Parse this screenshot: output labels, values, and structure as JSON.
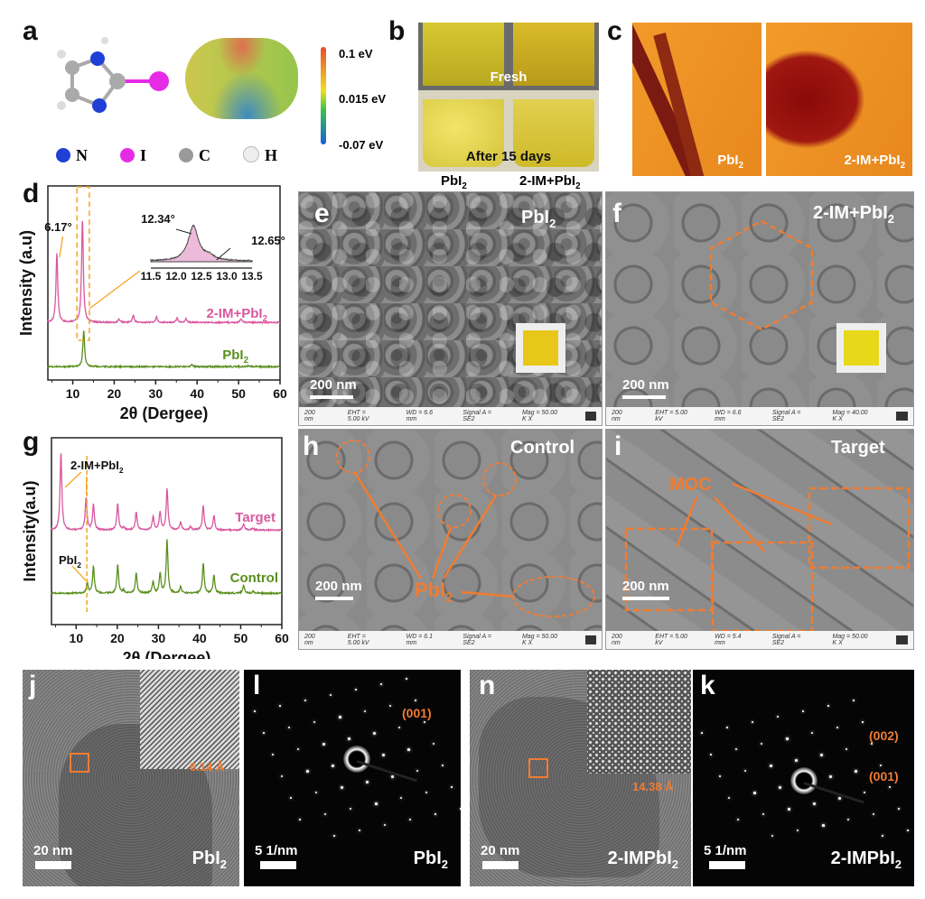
{
  "panels": {
    "a": {
      "label": "a",
      "colorbar": {
        "max": "0.1 eV",
        "mid": "0.015 eV",
        "min": "-0.07 eV"
      },
      "legend": [
        {
          "symbol": "N",
          "color": "#1f3fd6"
        },
        {
          "symbol": "I",
          "color": "#e62be6"
        },
        {
          "symbol": "C",
          "color": "#9a9a9a"
        },
        {
          "symbol": "H",
          "color": "#eeeeee"
        }
      ]
    },
    "b": {
      "label": "b",
      "fresh": "Fresh",
      "after": "After 15 days",
      "left": "PbI",
      "right": "2-IM+PbI",
      "sub": "2"
    },
    "c": {
      "label": "c",
      "left": "PbI",
      "right": "2-IM+PbI",
      "sub": "2"
    },
    "e": {
      "label": "e",
      "title": "PbI",
      "sub": "2",
      "scale": "200 nm"
    },
    "f": {
      "label": "f",
      "title": "2-IM+PbI",
      "sub": "2",
      "scale": "200 nm"
    },
    "h": {
      "label": "h",
      "title": "Control",
      "scale": "200 nm",
      "annot": "PbI",
      "sub": "2"
    },
    "i": {
      "label": "i",
      "title": "Target",
      "scale": "200 nm",
      "annot": "MOC"
    },
    "j": {
      "label": "j",
      "dspacing": "6.14 Å",
      "scale": "20 nm",
      "name": "PbI",
      "sub": "2"
    },
    "l": {
      "label": "l",
      "plane": "(001)",
      "scale": "5 1/nm",
      "name": "PbI",
      "sub": "2"
    },
    "n": {
      "label": "n",
      "dspacing": "14.38 Å",
      "scale": "20 nm",
      "name": "2-IMPbI",
      "sub": "2"
    },
    "k": {
      "label": "k",
      "plane1": "(002)",
      "plane2": "(001)",
      "scale": "5 1/nm",
      "name": "2-IMPbI",
      "sub": "2"
    }
  },
  "sem_footers": {
    "e": {
      "scale": "200 nm",
      "eht": "EHT = 5.00 kV",
      "wd": "WD = 6.6 mm",
      "signal": "Signal A = SE2",
      "mag": "Mag = 50.00 K X"
    },
    "f": {
      "scale": "200 nm",
      "eht": "EHT = 5.00 kV",
      "wd": "WD = 6.6 mm",
      "signal": "Signal A = SE2",
      "mag": "Mag = 40.00 K X"
    },
    "h": {
      "scale": "200 nm",
      "eht": "EHT = 5.00 kV",
      "wd": "WD = 6.1 mm",
      "signal": "Signal A = SE2",
      "mag": "Mag = 50.00 K X"
    },
    "i": {
      "scale": "200 nm",
      "eht": "EHT = 5.00 kV",
      "wd": "WD = 5.4 mm",
      "signal": "Signal A = SE2",
      "mag": "Mag = 50.00 K X"
    }
  },
  "chart_data": [
    {
      "id": "d",
      "label": "d",
      "type": "line",
      "xlabel": "2θ (Dergee)",
      "ylabel": "Intensity (a.u)",
      "xlim": [
        4,
        60
      ],
      "xticks": [
        10,
        20,
        30,
        40,
        50,
        60
      ],
      "series": [
        {
          "name": "2-IM+PbI2",
          "label": "2-IM+PbI",
          "sub": "2",
          "color": "#d9589f",
          "peaks": [
            [
              6.17,
              77
            ],
            [
              12.34,
              115
            ],
            [
              21.2,
              4
            ],
            [
              24.6,
              8
            ],
            [
              30.2,
              6
            ],
            [
              35.2,
              5
            ],
            [
              37.3,
              4
            ],
            [
              50.6,
              4
            ]
          ]
        },
        {
          "name": "PbI2",
          "label": "PbI",
          "sub": "2",
          "color": "#5a8f1e",
          "peaks": [
            [
              12.65,
              40
            ],
            [
              38.7,
              2
            ],
            [
              52.4,
              1.5
            ]
          ]
        }
      ],
      "annotations": [
        "6.17°"
      ],
      "inset": {
        "xlim": [
          11.5,
          13.5
        ],
        "xticks": [
          "11.5",
          "12.0",
          "12.5",
          "13.0",
          "13.5"
        ],
        "peak1": "12.34°",
        "peak2": "12.65°",
        "peaks": [
          [
            12.34,
            1
          ],
          [
            12.65,
            0.12
          ]
        ]
      }
    },
    {
      "id": "g",
      "label": "g",
      "type": "line",
      "xlabel": "2θ (Dergee)",
      "ylabel": "Intensity(a.u)",
      "xlim": [
        4,
        60
      ],
      "xticks": [
        10,
        20,
        30,
        40,
        50,
        60
      ],
      "series": [
        {
          "name": "Target",
          "color": "#d9589f",
          "peaks": [
            [
              6.3,
              86
            ],
            [
              12.4,
              35
            ],
            [
              14.2,
              28
            ],
            [
              20.1,
              30
            ],
            [
              21.5,
              3
            ],
            [
              24.6,
              20
            ],
            [
              28.7,
              15
            ],
            [
              30.4,
              20
            ],
            [
              32.1,
              46
            ],
            [
              35.4,
              9
            ],
            [
              37.8,
              4
            ],
            [
              40.9,
              27
            ],
            [
              43.5,
              16
            ],
            [
              50.7,
              7
            ],
            [
              53,
              2
            ]
          ]
        },
        {
          "name": "Control",
          "color": "#5a8f1e",
          "peaks": [
            [
              12.7,
              12
            ],
            [
              14.2,
              30
            ],
            [
              20.1,
              32
            ],
            [
              21.5,
              3
            ],
            [
              24.6,
              23
            ],
            [
              28.7,
              13
            ],
            [
              30.4,
              22
            ],
            [
              32.1,
              59
            ],
            [
              35.4,
              7
            ],
            [
              40.9,
              33
            ],
            [
              43.5,
              20
            ],
            [
              50.7,
              9
            ],
            [
              53,
              2
            ]
          ]
        }
      ],
      "annotations": [
        "2-IM+PbI2",
        "PbI2"
      ],
      "annot_top": "2-IM+PbI",
      "annot_bottom": "PbI",
      "sub": "2"
    }
  ]
}
